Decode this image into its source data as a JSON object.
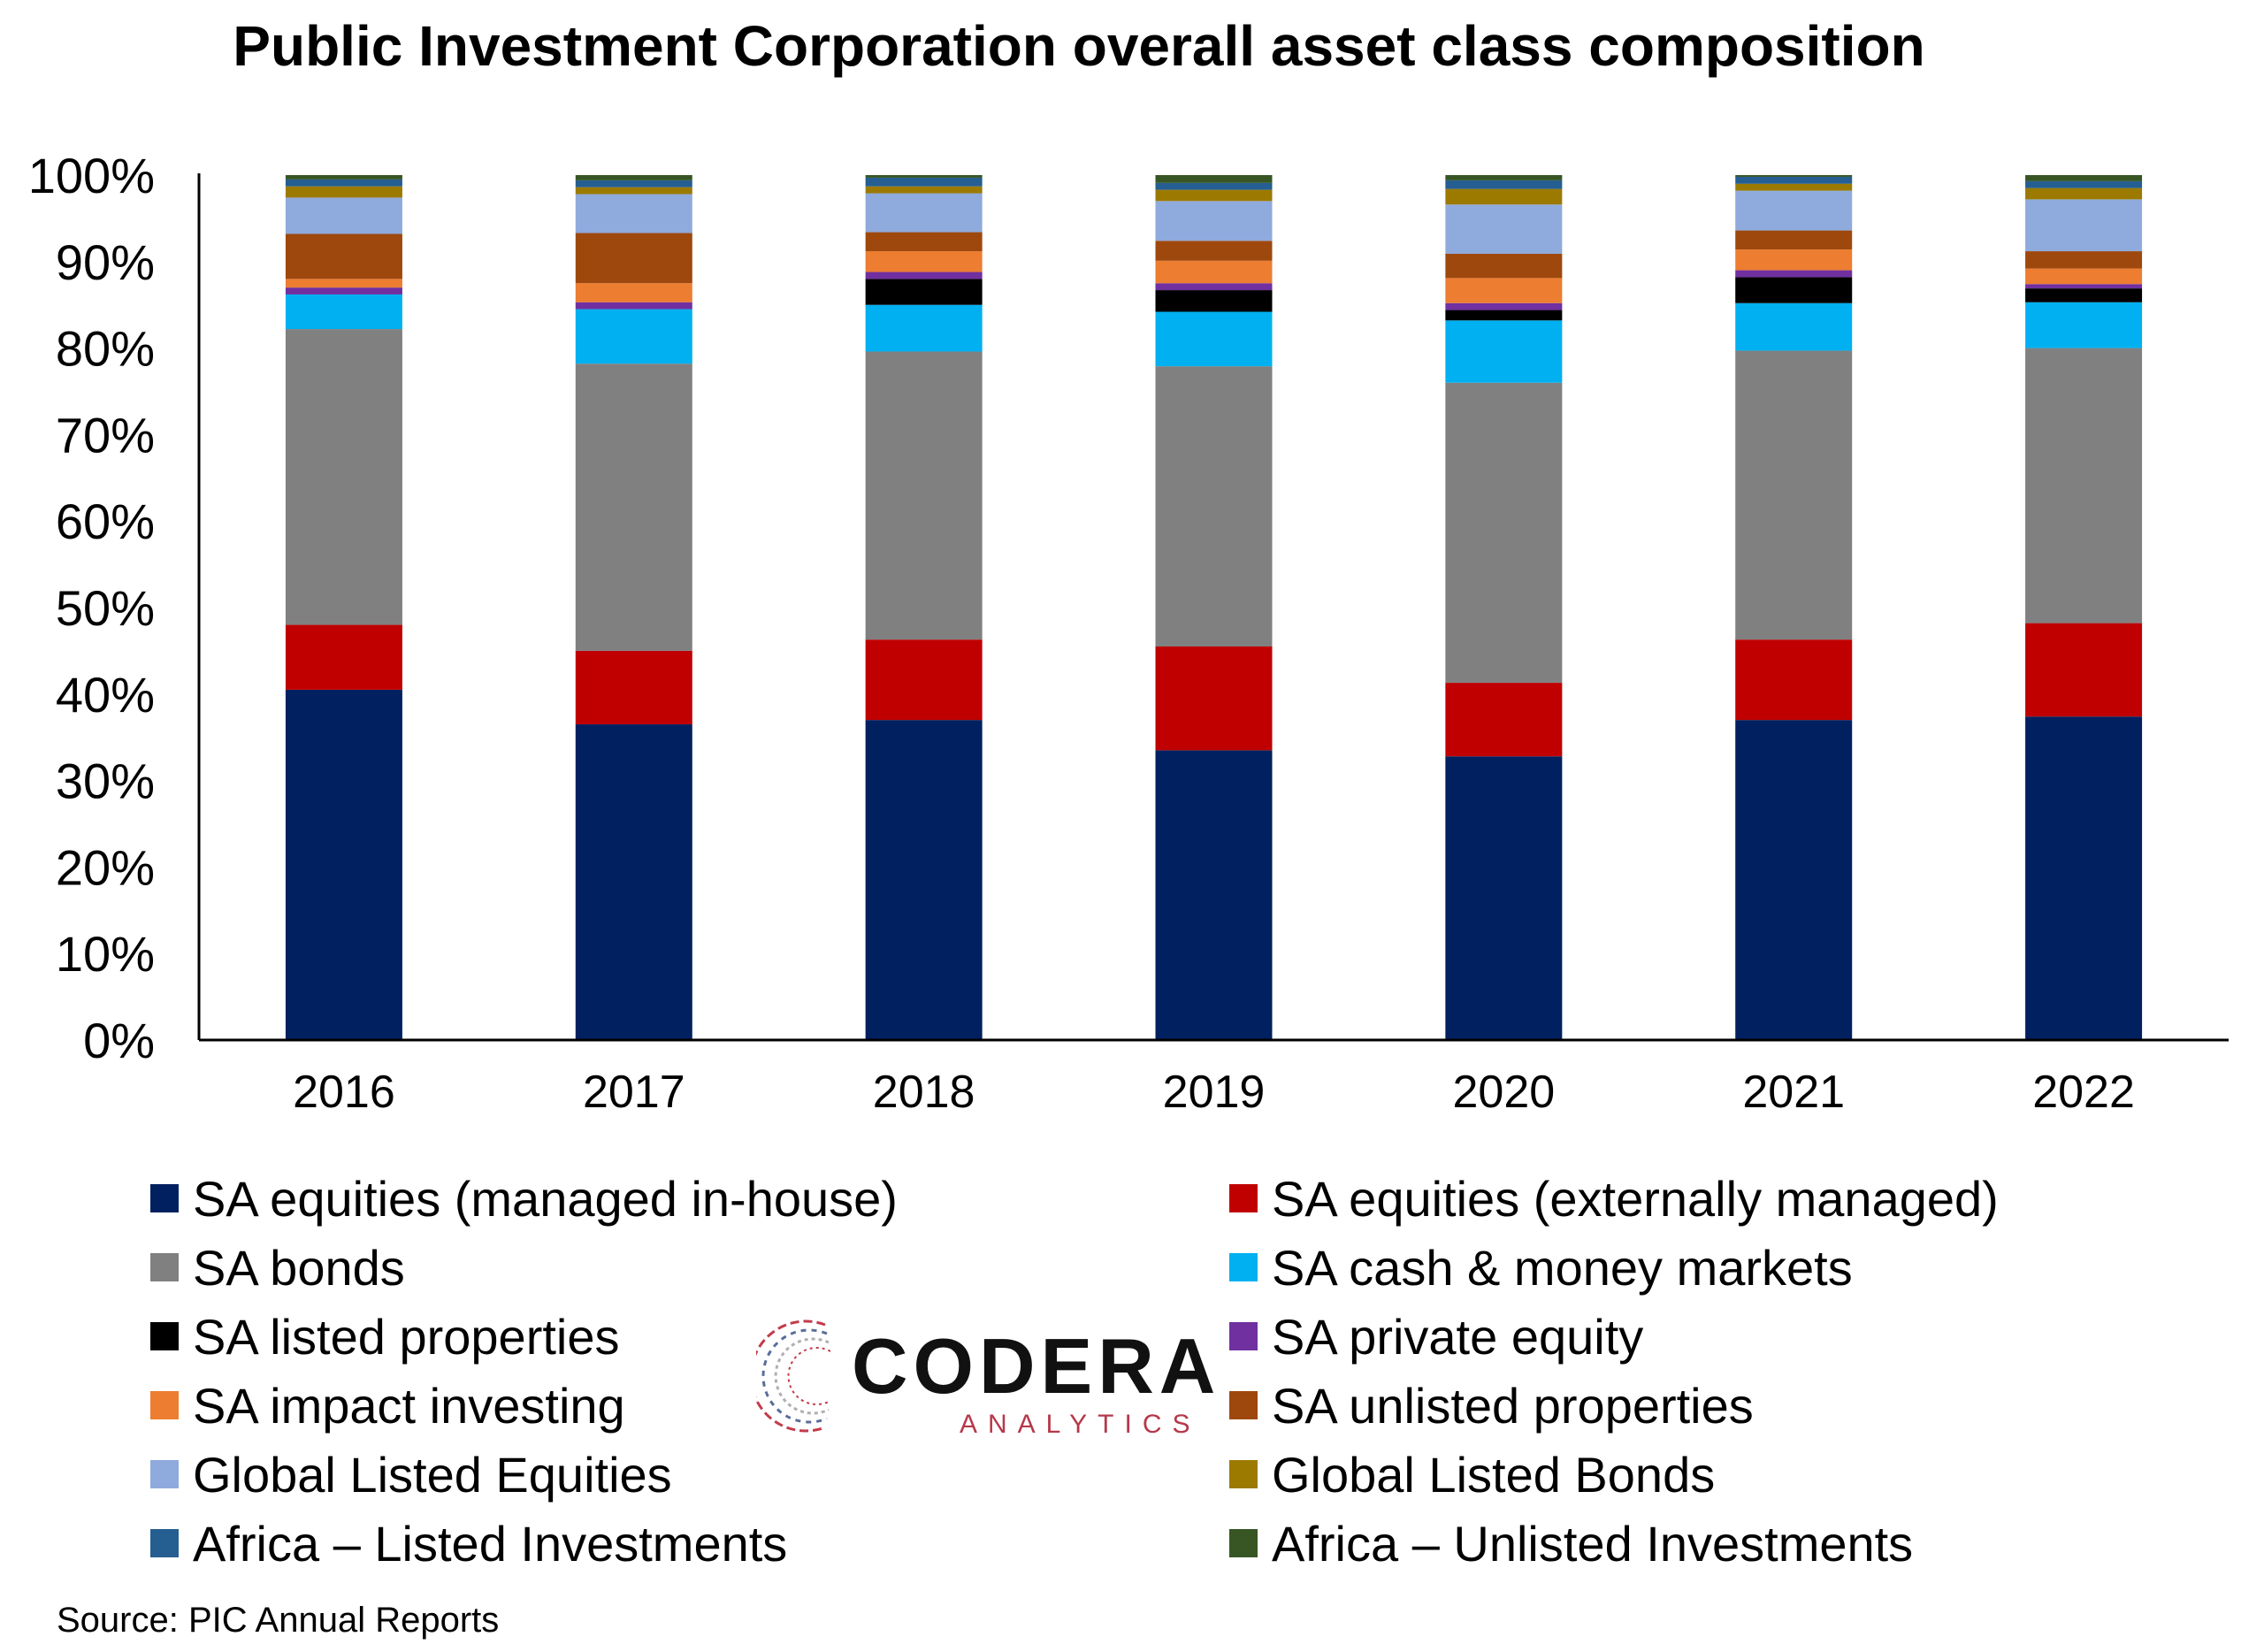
{
  "chart_data": {
    "type": "bar",
    "stacked": true,
    "title": "Public Investment Corporation overall asset class composition",
    "xlabel": "",
    "ylabel": "",
    "ylim": [
      0,
      100
    ],
    "yticks": [
      "0%",
      "10%",
      "20%",
      "30%",
      "40%",
      "50%",
      "60%",
      "70%",
      "80%",
      "90%",
      "100%"
    ],
    "categories": [
      "2016",
      "2017",
      "2018",
      "2019",
      "2020",
      "2021",
      "2022"
    ],
    "grid": false,
    "legend_position": "bottom",
    "series": [
      {
        "name": "SA equities (managed in-house)",
        "color": "#002060",
        "values": [
          40.5,
          36.5,
          37.0,
          33.5,
          32.8,
          37.0,
          37.4
        ]
      },
      {
        "name": "SA equities (externally managed)",
        "color": "#C00000",
        "values": [
          7.5,
          8.5,
          9.3,
          12.0,
          8.5,
          9.3,
          10.8
        ]
      },
      {
        "name": "SA bonds",
        "color": "#808080",
        "values": [
          34.2,
          33.2,
          33.3,
          32.4,
          34.7,
          33.4,
          31.8
        ]
      },
      {
        "name": "SA cash & money markets",
        "color": "#00B0F0",
        "values": [
          4.0,
          6.3,
          5.4,
          6.3,
          7.2,
          5.5,
          5.3
        ]
      },
      {
        "name": "SA listed properties",
        "color": "#000000",
        "values": [
          0.0,
          0.0,
          3.0,
          2.5,
          1.2,
          3.0,
          1.6
        ]
      },
      {
        "name": "SA private equity",
        "color": "#7030A0",
        "values": [
          0.8,
          0.8,
          0.8,
          0.8,
          0.8,
          0.8,
          0.5
        ]
      },
      {
        "name": "SA impact investing",
        "color": "#ED7D31",
        "values": [
          1.0,
          2.2,
          2.4,
          2.6,
          2.9,
          2.4,
          1.8
        ]
      },
      {
        "name": "SA unlisted properties",
        "color": "#9E480E",
        "values": [
          5.2,
          5.8,
          2.2,
          2.3,
          2.8,
          2.2,
          2.0
        ]
      },
      {
        "name": "Global Listed Equities",
        "color": "#8FAADC",
        "values": [
          4.2,
          4.5,
          4.5,
          4.6,
          5.7,
          4.6,
          6.0
        ]
      },
      {
        "name": "Global Listed Bonds",
        "color": "#9C7A00",
        "values": [
          1.3,
          0.8,
          0.8,
          1.3,
          1.8,
          0.8,
          1.3
        ]
      },
      {
        "name": "Africa – Listed Investments",
        "color": "#255E91",
        "values": [
          0.8,
          0.8,
          1.0,
          0.8,
          1.0,
          0.8,
          0.8
        ]
      },
      {
        "name": "Africa – Unlisted Investments",
        "color": "#375623",
        "values": [
          0.5,
          0.6,
          0.3,
          0.9,
          0.6,
          0.2,
          0.7
        ]
      }
    ]
  },
  "logo": {
    "name": "CODERA",
    "tagline": "ANALYTICS"
  },
  "source": "Source: PIC Annual Reports"
}
